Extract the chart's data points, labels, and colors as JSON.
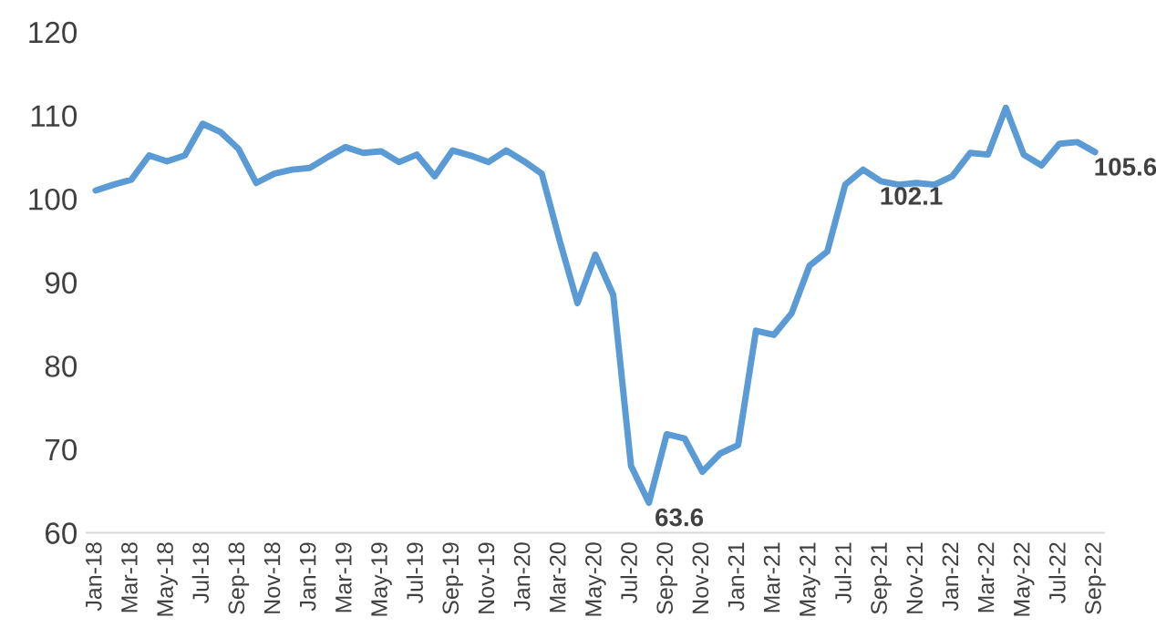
{
  "chart_data": {
    "type": "line",
    "categories": [
      "Jan-18",
      null,
      "Mar-18",
      null,
      "May-18",
      null,
      "Jul-18",
      null,
      "Sep-18",
      null,
      "Nov-18",
      null,
      "Jan-19",
      null,
      "Mar-19",
      null,
      "May-19",
      null,
      "Jul-19",
      null,
      "Sep-19",
      null,
      "Nov-19",
      null,
      "Jan-20",
      null,
      "Mar-20",
      null,
      "May-20",
      null,
      "Jul-20",
      null,
      "Sep-20",
      null,
      "Nov-20",
      null,
      "Jan-21",
      null,
      "Mar-21",
      null,
      "May-21",
      null,
      "Jul-21",
      null,
      "Sep-21",
      null,
      "Nov-21",
      null,
      "Jan-22",
      null,
      "Mar-22",
      null,
      "May-22",
      null,
      "Jul-22",
      null,
      "Sep-22"
    ],
    "series": [
      {
        "color": "#5b9bd5",
        "values": [
          101,
          101.7,
          102.3,
          105.2,
          104.5,
          105.2,
          109,
          108,
          106,
          101.9,
          103,
          103.5,
          103.7,
          105,
          106.2,
          105.5,
          105.7,
          104.4,
          105.3,
          102.7,
          105.8,
          105.2,
          104.4,
          105.8,
          104.5,
          103,
          95,
          87.5,
          93.3,
          88.5,
          68,
          63.6,
          71.8,
          71.3,
          67.3,
          69.5,
          70.5,
          84.2,
          83.7,
          86.3,
          92,
          93.7,
          101.7,
          103.5,
          102.1,
          101.7,
          101.9,
          101.7,
          102.7,
          105.5,
          105.3,
          110.9,
          105.3,
          104,
          106.6,
          106.8,
          105.6
        ],
        "value_labels": [
          null,
          null,
          null,
          null,
          null,
          null,
          null,
          null,
          null,
          null,
          null,
          null,
          null,
          null,
          null,
          null,
          null,
          null,
          null,
          null,
          null,
          null,
          null,
          null,
          null,
          null,
          null,
          null,
          null,
          null,
          null,
          "63.6",
          null,
          null,
          null,
          null,
          null,
          null,
          null,
          null,
          null,
          null,
          null,
          null,
          "102.1",
          null,
          null,
          null,
          null,
          null,
          null,
          null,
          null,
          null,
          null,
          null,
          "105.6"
        ]
      }
    ],
    "ylim": [
      60,
      120
    ],
    "yticks": [
      60,
      70,
      80,
      90,
      100,
      110,
      120
    ],
    "grid": false,
    "legend": false,
    "marker": "none",
    "line_style": "solid"
  }
}
